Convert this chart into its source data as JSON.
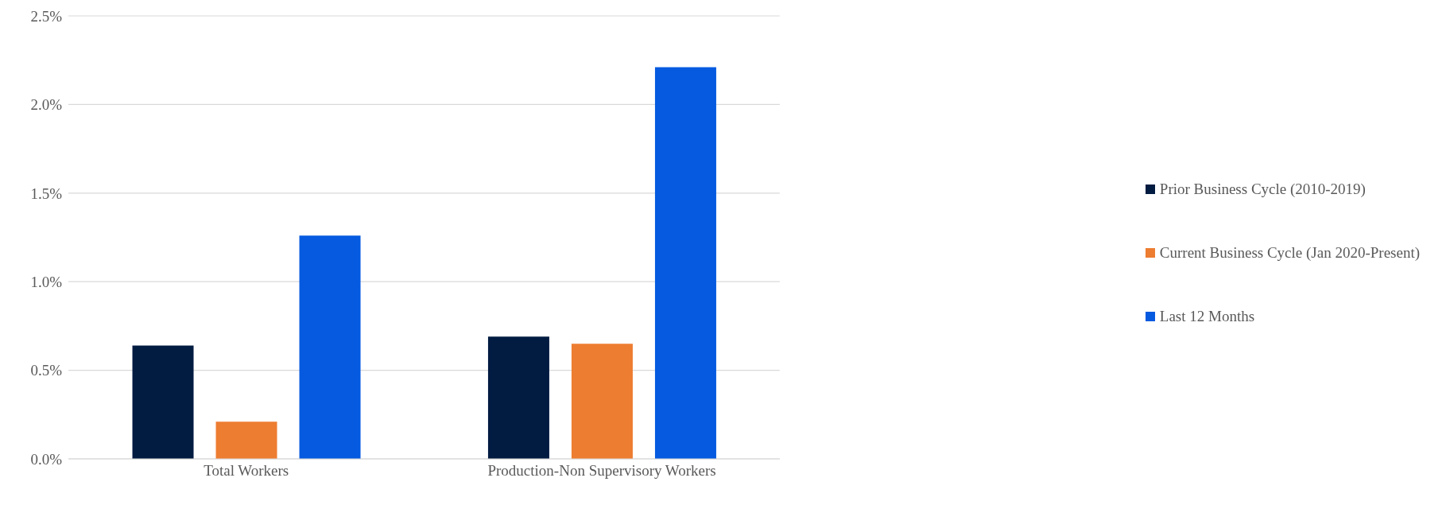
{
  "chart_data": {
    "type": "bar",
    "categories": [
      "Total Workers",
      "Production-Non Supervisory Workers"
    ],
    "series": [
      {
        "name": "Prior Business Cycle (2010-2019)",
        "color": "#021b41",
        "values": [
          0.64,
          0.69
        ]
      },
      {
        "name": "Current Business Cycle (Jan 2020-Present)",
        "color": "#ed7d31",
        "values": [
          0.21,
          0.65
        ]
      },
      {
        "name": "Last 12 Months",
        "color": "#055ae0",
        "values": [
          1.26,
          2.21
        ]
      }
    ],
    "ylim": [
      0,
      2.5
    ],
    "yticks": [
      {
        "value": 0,
        "label": "0.0%"
      },
      {
        "value": 0.5,
        "label": "0.5%"
      },
      {
        "value": 1,
        "label": "1.0%"
      },
      {
        "value": 1.5,
        "label": "1.5%"
      },
      {
        "value": 2,
        "label": "2.0%"
      },
      {
        "value": 2.5,
        "label": "2.5%"
      }
    ],
    "grid": "y",
    "legend": "right"
  }
}
